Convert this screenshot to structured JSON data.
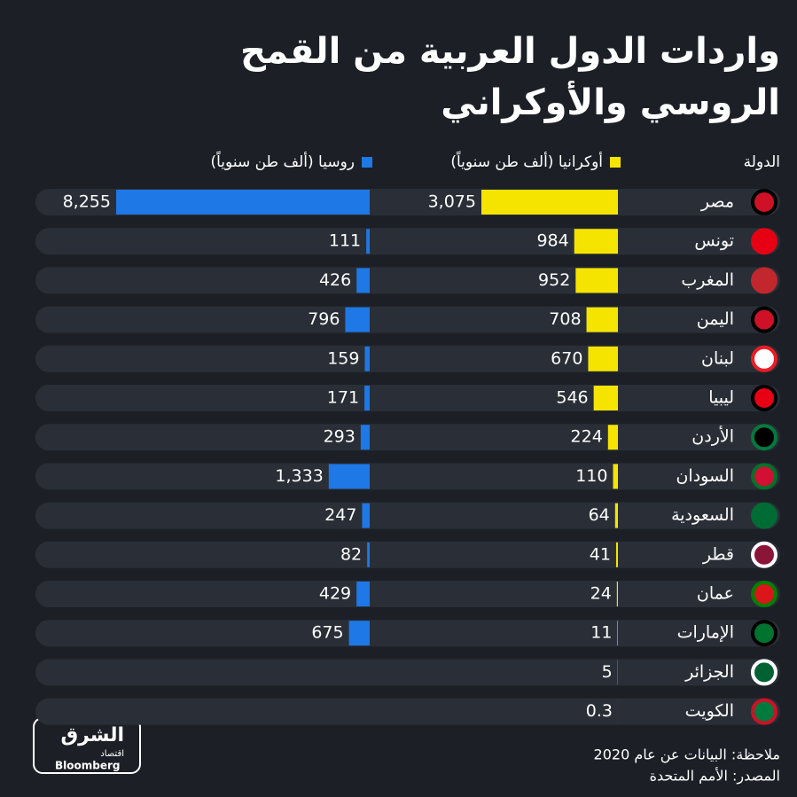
{
  "chart_data": {
    "type": "bar",
    "orientation": "horizontal",
    "title": "واردات الدول العربية من القمح",
    "subtitle": "الروسي والأوكراني",
    "category_label": "الدولة",
    "categories": [
      "مصر",
      "تونس",
      "المغرب",
      "اليمن",
      "لبنان",
      "ليبيا",
      "الأردن",
      "السودان",
      "السعودية",
      "قطر",
      "عمان",
      "الإمارات",
      "الجزائر",
      "الكويت"
    ],
    "series": [
      {
        "name": "أوكرانيا (ألف طن سنوياً)",
        "color": "#f5e400",
        "values": [
          3075,
          984,
          952,
          708,
          670,
          546,
          224,
          110,
          64,
          41,
          24,
          11,
          5,
          0.3
        ],
        "value_labels": [
          "3,075",
          "984",
          "952",
          "708",
          "670",
          "546",
          "224",
          "110",
          "64",
          "41",
          "24",
          "11",
          "5",
          "0.3"
        ]
      },
      {
        "name": "روسيا (ألف طن سنوياً)",
        "color": "#1e78e6",
        "values": [
          8255,
          111,
          426,
          796,
          159,
          171,
          293,
          1333,
          247,
          82,
          429,
          675,
          null,
          null
        ],
        "value_labels": [
          "8,255",
          "111",
          "426",
          "796",
          "159",
          "171",
          "293",
          "1,333",
          "247",
          "82",
          "429",
          "675",
          null,
          null
        ]
      }
    ],
    "note": "ملاحظة: البيانات عن عام 2020",
    "source": "المصدر: الأمم المتحدة",
    "logo": {
      "name": "الشرق",
      "sub": "اقتصاد",
      "brand": "Bloomberg"
    }
  }
}
